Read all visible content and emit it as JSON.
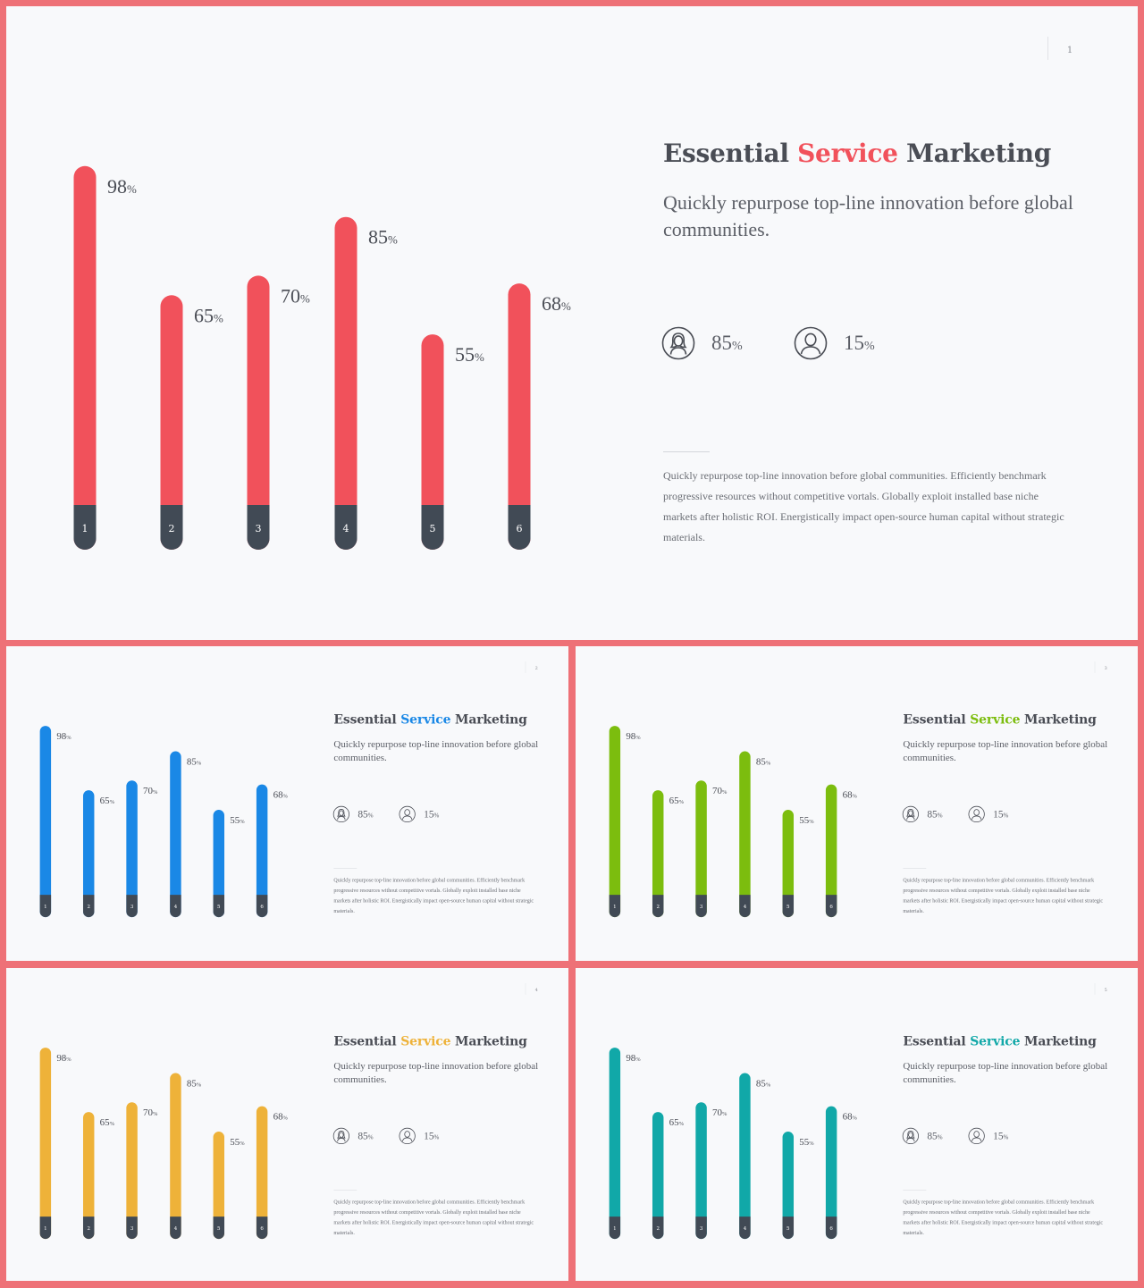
{
  "colors": {
    "frame": "#ee7177",
    "background": "#f8f9fb",
    "text": "#4a4d55",
    "base": "#414a55"
  },
  "slides": [
    {
      "page_number": "1",
      "accent": "#f1515b",
      "title": {
        "before": "Essential ",
        "highlight": "Service",
        "after": " Marketing"
      },
      "subtitle": "Quickly repurpose top-line innovation before global communities.",
      "stats": [
        {
          "icon": "female-user-icon",
          "value": "85",
          "unit": "%"
        },
        {
          "icon": "male-user-icon",
          "value": "15",
          "unit": "%"
        }
      ],
      "body": "Quickly repurpose top-line innovation before global communities. Efficiently benchmark progressive resources without competitive vortals. Globally exploit installed base niche markets after holistic ROI. Energistically impact open-source human capital without strategic materials."
    },
    {
      "page_number": "2",
      "accent": "#1a88e6",
      "title": {
        "before": "Essential ",
        "highlight": "Service",
        "after": " Marketing"
      },
      "subtitle": "Quickly repurpose top-line innovation before global communities.",
      "stats": [
        {
          "icon": "female-user-icon",
          "value": "85",
          "unit": "%"
        },
        {
          "icon": "male-user-icon",
          "value": "15",
          "unit": "%"
        }
      ],
      "body": "Quickly repurpose top-line innovation before global communities. Efficiently benchmark progressive resources without competitive vortals. Globally exploit installed base niche markets after holistic ROI. Energistically impact open-source human capital without strategic materials."
    },
    {
      "page_number": "3",
      "accent": "#7cbd0e",
      "title": {
        "before": "Essential ",
        "highlight": "Service",
        "after": " Marketing"
      },
      "subtitle": "Quickly repurpose top-line innovation before global communities.",
      "stats": [
        {
          "icon": "female-user-icon",
          "value": "85",
          "unit": "%"
        },
        {
          "icon": "male-user-icon",
          "value": "15",
          "unit": "%"
        }
      ],
      "body": "Quickly repurpose top-line innovation before global communities. Efficiently benchmark progressive resources without competitive vortals. Globally exploit installed base niche markets after holistic ROI. Energistically impact open-source human capital without strategic materials."
    },
    {
      "page_number": "4",
      "accent": "#eeb239",
      "title": {
        "before": "Essential ",
        "highlight": "Service",
        "after": " Marketing"
      },
      "subtitle": "Quickly repurpose top-line innovation before global communities.",
      "stats": [
        {
          "icon": "female-user-icon",
          "value": "85",
          "unit": "%"
        },
        {
          "icon": "male-user-icon",
          "value": "15",
          "unit": "%"
        }
      ],
      "body": "Quickly repurpose top-line innovation before global communities. Efficiently benchmark progressive resources without competitive vortals. Globally exploit installed base niche markets after holistic ROI. Energistically impact open-source human capital without strategic materials."
    },
    {
      "page_number": "5",
      "accent": "#11a8a8",
      "title": {
        "before": "Essential ",
        "highlight": "Service",
        "after": " Marketing"
      },
      "subtitle": "Quickly repurpose top-line innovation before global communities.",
      "stats": [
        {
          "icon": "female-user-icon",
          "value": "85",
          "unit": "%"
        },
        {
          "icon": "male-user-icon",
          "value": "15",
          "unit": "%"
        }
      ],
      "body": "Quickly repurpose top-line innovation before global communities. Efficiently benchmark progressive resources without competitive vortals. Globally exploit installed base niche markets after holistic ROI. Energistically impact open-source human capital without strategic materials."
    }
  ],
  "chart_data": {
    "type": "bar",
    "categories": [
      "1",
      "2",
      "3",
      "4",
      "5",
      "6"
    ],
    "values": [
      98,
      65,
      70,
      85,
      55,
      68
    ],
    "value_suffix": "%",
    "ylim": [
      0,
      100
    ],
    "title": "",
    "xlabel": "",
    "ylabel": "",
    "grid": false,
    "legend": "none"
  }
}
